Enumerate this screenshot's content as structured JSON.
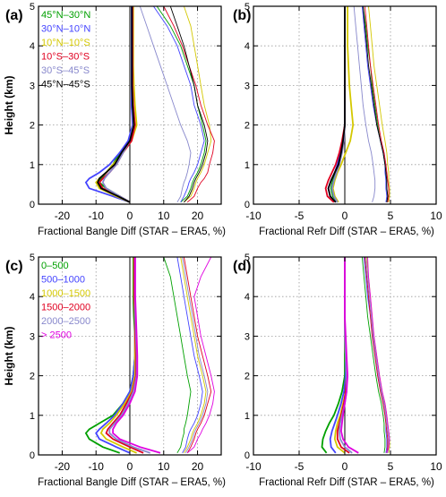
{
  "axis_label_y": "Height (km)",
  "chart_data": [
    {
      "panel_label": "(a)",
      "type": "line",
      "xlabel": "Fractional Bangle Diff (STAR – ERA5, %)",
      "ylabel": "Height (km)",
      "xlim": [
        -27,
        27
      ],
      "ylim": [
        0,
        5
      ],
      "xticks": [
        -20,
        -10,
        0,
        10,
        20
      ],
      "yticks": [
        0,
        1,
        2,
        3,
        4,
        5
      ],
      "grid": true,
      "legend_position": "top-left",
      "y": [
        0.05,
        0.2,
        0.4,
        0.55,
        0.65,
        0.8,
        1.0,
        1.3,
        1.6,
        2.0,
        2.5,
        3.0,
        3.5,
        4.0,
        4.5,
        5.0
      ],
      "series": [
        {
          "name": "45°N–30°N",
          "color": "#00a000",
          "mean": [
            0,
            -3,
            -7,
            -9,
            -8.5,
            -7,
            -5,
            -3,
            0,
            1,
            0.5,
            0.5,
            0.5,
            0.5,
            0.5,
            0.5
          ],
          "std": [
            15,
            17,
            18,
            18.5,
            19,
            20,
            21,
            22,
            22.5,
            21.5,
            20,
            19,
            17,
            15,
            12,
            8
          ]
        },
        {
          "name": "30°N–10°N",
          "color": "#4444ff",
          "mean": [
            0,
            -5,
            -12,
            -13,
            -12,
            -9,
            -6,
            -3,
            -0.5,
            0.8,
            0.5,
            0.5,
            0.5,
            0.5,
            0.5,
            0.5
          ],
          "std": [
            15,
            16,
            17,
            17.5,
            18,
            19,
            20,
            21,
            22,
            21,
            19,
            18,
            16,
            14,
            11,
            7
          ]
        },
        {
          "name": "10°N–10°S",
          "color": "#d4c800",
          "mean": [
            0,
            -4,
            -9,
            -10,
            -9,
            -7,
            -5,
            -2,
            0.5,
            2,
            1.5,
            1.2,
            1,
            1,
            1,
            1
          ],
          "std": [
            16,
            18,
            19,
            19.5,
            20,
            21,
            22,
            23,
            24,
            23.5,
            22,
            21,
            20,
            19,
            18,
            16
          ]
        },
        {
          "name": "10°S–30°S",
          "color": "#e00020",
          "mean": [
            0,
            -3,
            -8,
            -9,
            -8,
            -6,
            -4,
            -2,
            0.5,
            1.5,
            1,
            0.8,
            0.8,
            0.8,
            0.8,
            0.8
          ],
          "std": [
            17,
            19,
            20,
            21,
            22,
            23,
            23.5,
            24.5,
            25,
            23,
            21,
            19.5,
            17.5,
            15.5,
            13,
            10
          ]
        },
        {
          "name": "30°S–45°S",
          "color": "#8888cc",
          "mean": [
            0,
            -3,
            -7,
            -8,
            -7.5,
            -6,
            -4,
            -2,
            0,
            1,
            0.8,
            0.6,
            0.6,
            0.6,
            0.6,
            0.6
          ],
          "std": [
            14,
            15,
            15.5,
            16,
            16.5,
            17,
            17.5,
            18,
            17,
            15,
            13,
            11,
            9,
            7,
            5,
            3
          ]
        },
        {
          "name": "45°N–45°S",
          "color": "#000000",
          "mean": [
            0,
            -3.5,
            -8.5,
            -9.5,
            -9,
            -7,
            -4.5,
            -2.5,
            0,
            1.2,
            0.8,
            0.6,
            0.6,
            0.6,
            0.6,
            0.6
          ],
          "std": [
            16,
            17.5,
            18.5,
            19,
            19.5,
            20.5,
            21.5,
            22.5,
            23,
            22,
            20,
            19,
            17.5,
            16,
            14,
            12
          ]
        }
      ]
    },
    {
      "panel_label": "(b)",
      "type": "line",
      "xlabel": "Fractional Refr Diff (STAR – ERA5, %)",
      "ylabel": "",
      "xlim": [
        -10,
        10
      ],
      "ylim": [
        0,
        5
      ],
      "xticks": [
        -10,
        -5,
        0,
        5,
        10
      ],
      "yticks": [
        0,
        1,
        2,
        3,
        4,
        5
      ],
      "grid": true,
      "y": [
        0.05,
        0.2,
        0.4,
        0.6,
        0.8,
        1.0,
        1.3,
        1.6,
        2.0,
        2.5,
        3.0,
        3.5,
        4.0,
        4.5,
        5.0
      ],
      "series": [
        {
          "name": "45°N–30°N",
          "color": "#00a000",
          "mean": [
            -0.8,
            -1.3,
            -1.5,
            -1.3,
            -1.0,
            -0.7,
            -0.4,
            -0.2,
            0,
            0,
            0,
            0,
            0,
            0,
            0
          ],
          "std": [
            4.6,
            4.7,
            4.6,
            4.5,
            4.5,
            4.4,
            4.2,
            3.9,
            3.6,
            3.3,
            3.0,
            2.8,
            2.5,
            2.3,
            2.0
          ]
        },
        {
          "name": "30°N–10°N",
          "color": "#4444ff",
          "mean": [
            -1.0,
            -1.6,
            -1.8,
            -1.5,
            -1.1,
            -0.8,
            -0.5,
            -0.2,
            0,
            0,
            0,
            0,
            0,
            0,
            0
          ],
          "std": [
            4.5,
            4.6,
            4.5,
            4.5,
            4.4,
            4.4,
            4.2,
            3.9,
            3.5,
            3.1,
            2.8,
            2.5,
            2.3,
            2.1,
            1.9
          ]
        },
        {
          "name": "10°N–10°S",
          "color": "#d4c800",
          "mean": [
            -0.7,
            -1.1,
            -1.3,
            -1.1,
            -0.8,
            -0.4,
            0.1,
            0.6,
            0.9,
            0.7,
            0.5,
            0.4,
            0.3,
            0.3,
            0.3
          ],
          "std": [
            4.8,
            4.9,
            4.9,
            4.8,
            4.8,
            4.7,
            4.6,
            4.4,
            4.1,
            3.8,
            3.5,
            3.2,
            3.0,
            2.8,
            2.6
          ]
        },
        {
          "name": "10°S–30°S",
          "color": "#e00020",
          "mean": [
            -1.2,
            -1.9,
            -2.1,
            -1.8,
            -1.4,
            -1.0,
            -0.6,
            -0.3,
            0,
            0,
            0,
            0,
            0,
            0,
            0
          ],
          "std": [
            4.7,
            4.8,
            4.8,
            4.7,
            4.6,
            4.5,
            4.3,
            4.0,
            3.7,
            3.4,
            3.1,
            2.8,
            2.6,
            2.4,
            2.2
          ]
        },
        {
          "name": "30°S–45°S",
          "color": "#8888cc",
          "mean": [
            -0.8,
            -1.2,
            -1.4,
            -1.2,
            -0.9,
            -0.6,
            -0.3,
            -0.1,
            0,
            0,
            0,
            0,
            0,
            0,
            0
          ],
          "std": [
            3.0,
            3.2,
            3.3,
            3.3,
            3.2,
            3.1,
            2.9,
            2.6,
            2.3,
            2.0,
            1.8,
            1.6,
            1.4,
            1.2,
            1.0
          ]
        },
        {
          "name": "45°N–45°S",
          "color": "#000000",
          "mean": [
            -1.0,
            -1.6,
            -1.8,
            -1.5,
            -1.1,
            -0.7,
            -0.4,
            -0.2,
            0,
            0,
            0,
            0,
            0,
            0,
            0
          ],
          "std": [
            4.6,
            4.7,
            4.6,
            4.6,
            4.5,
            4.4,
            4.2,
            3.9,
            3.5,
            3.2,
            2.9,
            2.6,
            2.4,
            2.2,
            2.0
          ]
        }
      ]
    },
    {
      "panel_label": "(c)",
      "type": "line",
      "xlabel": "Fractional Bangle Diff (STAR – ERA5, %)",
      "ylabel": "Height (km)",
      "xlim": [
        -27,
        27
      ],
      "ylim": [
        0,
        5
      ],
      "xticks": [
        -20,
        -10,
        0,
        10,
        20
      ],
      "yticks": [
        0,
        1,
        2,
        3,
        4,
        5
      ],
      "grid": true,
      "legend_position": "top-left",
      "y": [
        0.05,
        0.2,
        0.4,
        0.55,
        0.65,
        0.8,
        1.0,
        1.3,
        1.6,
        2.0,
        2.5,
        3.0,
        3.5,
        4.0,
        4.5,
        5.0
      ],
      "series": [
        {
          "name": "0–500",
          "color": "#00a000",
          "mean": [
            -3,
            -8,
            -12,
            -13,
            -12,
            -9,
            -5,
            -2,
            0,
            1,
            1.5,
            1.5,
            1.2,
            1,
            1,
            1
          ],
          "std": [
            14,
            15,
            15.5,
            16,
            16,
            16.5,
            17,
            17.5,
            18,
            17,
            16,
            15,
            14,
            13,
            12,
            10
          ]
        },
        {
          "name": "500–1000",
          "color": "#4444ff",
          "mean": [
            0,
            -4,
            -9,
            -10,
            -9,
            -7,
            -4.5,
            -2,
            0,
            1,
            1.5,
            1.5,
            1.5,
            1.2,
            1.2,
            1.2
          ],
          "std": [
            15.5,
            16.5,
            17,
            17.5,
            18,
            19,
            20,
            21,
            21.5,
            20.5,
            19,
            18,
            17,
            16,
            15,
            14
          ]
        },
        {
          "name": "1000–1500",
          "color": "#d4c800",
          "mean": [
            2,
            -2,
            -7,
            -8.5,
            -8,
            -6,
            -4,
            -1.5,
            0.5,
            1.5,
            1.5,
            1.5,
            1.5,
            1.2,
            1.2,
            1.2
          ],
          "std": [
            16,
            17,
            18,
            18.5,
            19,
            20,
            21,
            22,
            22.5,
            21.5,
            20,
            19,
            18,
            17,
            16,
            15
          ]
        },
        {
          "name": "1500–2000",
          "color": "#e00020",
          "mean": [
            4,
            0,
            -5,
            -7,
            -6.5,
            -5,
            -3,
            -1,
            0.8,
            1.8,
            1.8,
            1.6,
            1.5,
            1.3,
            1.3,
            1.3
          ],
          "std": [
            17,
            18,
            19,
            19.5,
            20,
            21,
            22,
            23,
            24,
            23,
            21.5,
            20,
            19,
            18,
            17,
            16
          ]
        },
        {
          "name": "2000–2500",
          "color": "#8888cc",
          "mean": [
            6,
            1,
            -4,
            -6,
            -6,
            -4.5,
            -2.5,
            -0.5,
            1,
            2,
            2,
            1.8,
            1.6,
            1.5,
            1.5,
            1.5
          ],
          "std": [
            16.5,
            17.5,
            18.5,
            19,
            19.5,
            20.5,
            21.5,
            22.5,
            23,
            22,
            20.5,
            19.5,
            18.5,
            17.5,
            16.5,
            15.5
          ]
        },
        {
          "name": "> 2500",
          "color": "#e000e0",
          "mean": [
            9,
            3,
            -3,
            -5,
            -5,
            -4,
            -2,
            0,
            1.5,
            2.2,
            2.2,
            2,
            1.8,
            1.6,
            1.6,
            1.6
          ],
          "std": [
            17,
            19,
            20,
            21,
            21.5,
            22.5,
            23.5,
            24.5,
            25,
            24,
            22.5,
            21,
            20,
            19,
            21,
            24
          ]
        }
      ]
    },
    {
      "panel_label": "(d)",
      "type": "line",
      "xlabel": "Fractional Refr Diff (STAR – ERA5, %)",
      "ylabel": "",
      "xlim": [
        -10,
        10
      ],
      "ylim": [
        0,
        5
      ],
      "xticks": [
        -10,
        -5,
        0,
        5,
        10
      ],
      "yticks": [
        0,
        1,
        2,
        3,
        4,
        5
      ],
      "grid": true,
      "y": [
        0.05,
        0.2,
        0.4,
        0.6,
        0.8,
        1.0,
        1.3,
        1.6,
        2.0,
        2.5,
        3.0,
        3.5,
        4.0,
        4.5,
        5.0
      ],
      "series": [
        {
          "name": "0–500",
          "color": "#00a000",
          "mean": [
            -2.0,
            -2.5,
            -2.4,
            -2.1,
            -1.7,
            -1.2,
            -0.7,
            -0.3,
            0,
            0,
            0,
            0,
            0,
            0,
            0
          ],
          "std": [
            4.3,
            4.4,
            4.4,
            4.3,
            4.3,
            4.2,
            4.0,
            3.7,
            3.4,
            3.1,
            2.8,
            2.5,
            2.3,
            2.1,
            1.9
          ]
        },
        {
          "name": "500–1000",
          "color": "#4444ff",
          "mean": [
            -1.0,
            -1.5,
            -1.6,
            -1.4,
            -1.1,
            -0.8,
            -0.4,
            -0.1,
            0.1,
            0.1,
            0,
            0,
            0,
            0,
            0
          ],
          "std": [
            4.5,
            4.6,
            4.6,
            4.5,
            4.5,
            4.4,
            4.2,
            3.9,
            3.6,
            3.3,
            3.0,
            2.8,
            2.5,
            2.3,
            2.1
          ]
        },
        {
          "name": "1000–1500",
          "color": "#d4c800",
          "mean": [
            0,
            -0.8,
            -1.1,
            -1.0,
            -0.8,
            -0.5,
            -0.2,
            0.1,
            0.2,
            0.1,
            0,
            0,
            0,
            0,
            0
          ],
          "std": [
            4.8,
            4.9,
            4.9,
            4.8,
            4.7,
            4.6,
            4.4,
            4.1,
            3.8,
            3.5,
            3.2,
            3.0,
            2.8,
            2.6,
            2.4
          ]
        },
        {
          "name": "1500–2000",
          "color": "#e00020",
          "mean": [
            0.5,
            -0.4,
            -0.8,
            -0.8,
            -0.6,
            -0.4,
            -0.1,
            0.1,
            0.2,
            0.1,
            0,
            0,
            0,
            0,
            0
          ],
          "std": [
            4.6,
            4.7,
            4.7,
            4.6,
            4.5,
            4.4,
            4.2,
            3.9,
            3.6,
            3.3,
            3.0,
            2.8,
            2.6,
            2.4,
            2.2
          ]
        },
        {
          "name": "2000–2500",
          "color": "#8888cc",
          "mean": [
            0.8,
            0,
            -0.5,
            -0.6,
            -0.5,
            -0.3,
            0,
            0.2,
            0.2,
            0.1,
            0,
            0,
            0,
            0,
            0
          ],
          "std": [
            4.7,
            4.8,
            4.8,
            4.7,
            4.6,
            4.5,
            4.3,
            4.0,
            3.7,
            3.4,
            3.1,
            2.9,
            2.7,
            2.5,
            2.3
          ]
        },
        {
          "name": "> 2500",
          "color": "#e000e0",
          "mean": [
            1.5,
            0.4,
            -0.2,
            -0.4,
            -0.3,
            -0.2,
            0,
            0.2,
            0.3,
            0.2,
            0.1,
            0,
            0,
            0,
            0
          ],
          "std": [
            4.6,
            4.8,
            4.9,
            4.8,
            4.7,
            4.6,
            4.4,
            4.1,
            3.8,
            3.5,
            3.2,
            3.0,
            2.8,
            2.6,
            2.5
          ]
        }
      ]
    }
  ]
}
